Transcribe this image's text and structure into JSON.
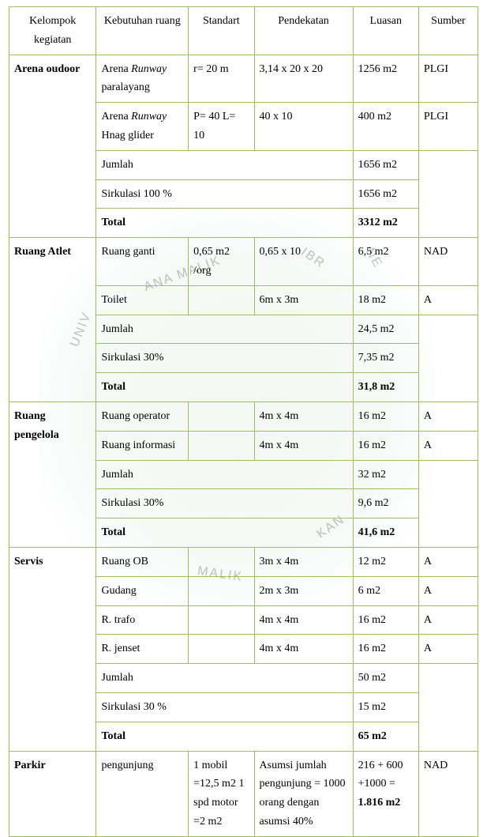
{
  "header": {
    "kelompok": "Kelompok kegiatan",
    "kebutuhan": "Kebutuhan ruang",
    "standart": "Standart",
    "pendekatan": "Pendekatan",
    "luasan": "Luasan",
    "sumber": "Sumber"
  },
  "groups": [
    {
      "name": "Arena oudoor",
      "rows": [
        {
          "kebutuhan_pre": "Arena ",
          "kebutuhan_ital": "Runway",
          "kebutuhan_post": " paralayang",
          "standart": "r= 20 m",
          "pendekatan": "3,14 x 20 x 20",
          "luasan": "1256 m2",
          "sumber": "PLGI"
        },
        {
          "kebutuhan_pre": "Arena ",
          "kebutuhan_ital": "Runway",
          "kebutuhan_post": " Hnag glider",
          "standart": "P= 40 L= 10",
          "pendekatan": "40 x 10",
          "luasan": "400 m2",
          "sumber": "PLGI"
        }
      ],
      "jumlah_label": "Jumlah",
      "jumlah": "1656 m2",
      "sirk_label": "Sirkulasi 100 %",
      "sirk": "1656 m2",
      "total_label": "Total",
      "total": "3312 m2"
    },
    {
      "name": "Ruang Atlet",
      "rows": [
        {
          "kebutuhan": "Ruang ganti",
          "standart": "0,65 m2 /org",
          "pendekatan": "0,65 x 10",
          "luasan": "6,5 m2",
          "sumber": "NAD"
        },
        {
          "kebutuhan": "Toilet",
          "standart": "",
          "pendekatan": "6m x 3m",
          "luasan": "18 m2",
          "sumber": "A"
        }
      ],
      "jumlah_label": "Jumlah",
      "jumlah": "24,5 m2",
      "sirk_label": "Sirkulasi 30%",
      "sirk": "7,35 m2",
      "total_label": "Total",
      "total": "31,8 m2"
    },
    {
      "name": "Ruang pengelola",
      "rows": [
        {
          "kebutuhan": "Ruang operator",
          "standart": "",
          "pendekatan": "4m x 4m",
          "luasan": "16 m2",
          "sumber": "A"
        },
        {
          "kebutuhan": "Ruang informasi",
          "standart": "",
          "pendekatan": "4m x 4m",
          "luasan": "16 m2",
          "sumber": "A"
        }
      ],
      "jumlah_label": "Jumlah",
      "jumlah": "32 m2",
      "sirk_label": "Sirkulasi 30%",
      "sirk": "9,6 m2",
      "total_label": "Total",
      "total": "41,6 m2"
    },
    {
      "name": "Servis",
      "rows": [
        {
          "kebutuhan": "Ruang OB",
          "standart": "",
          "pendekatan": "3m x 4m",
          "luasan": "12 m2",
          "sumber": "A"
        },
        {
          "kebutuhan": "Gudang",
          "standart": "",
          "pendekatan": "2m x 3m",
          "luasan": "6 m2",
          "sumber": "A"
        },
        {
          "kebutuhan": "R. trafo",
          "standart": "",
          "pendekatan": "4m x 4m",
          "luasan": "16 m2",
          "sumber": "A"
        },
        {
          "kebutuhan": "R. jenset",
          "standart": "",
          "pendekatan": "4m x 4m",
          "luasan": "16 m2",
          "sumber": "A"
        }
      ],
      "jumlah_label": "Jumlah",
      "jumlah": "50 m2",
      "sirk_label": "Sirkulasi 30 %",
      "sirk": "15 m2",
      "total_label": "Total",
      "total": "65 m2"
    }
  ],
  "parkir": {
    "name": "Parkir",
    "kebutuhan": "pengunjung",
    "standart": "1 mobil =12,5 m2 1 spd motor =2 m2",
    "pendekatan": "Asumsi jumlah pengunjung = 1000 orang dengan asumsi 40%",
    "luasan_pre": "216 + 600 +1000 = ",
    "luasan_bold": "1.816 m2",
    "sumber": "NAD"
  }
}
